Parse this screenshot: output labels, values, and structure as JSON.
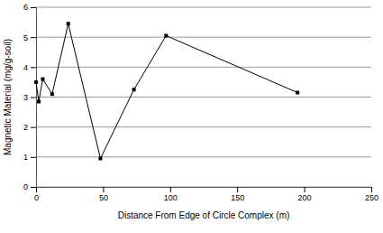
{
  "chart_data": {
    "type": "line",
    "x_label": "Distance From Edge of Circle Complex (m)",
    "y_label": "Magnetic Material (mg/g-soil)",
    "x": [
      0,
      2,
      5,
      12,
      24,
      48,
      73,
      97,
      195
    ],
    "values": [
      3.5,
      2.85,
      3.6,
      3.1,
      5.45,
      0.95,
      3.25,
      5.05,
      3.15
    ],
    "color": "#000000",
    "marker": "square",
    "xlim": [
      0,
      250
    ],
    "xticks": [
      0,
      50,
      100,
      150,
      200,
      250
    ],
    "ylim": [
      0,
      6
    ],
    "yticks": [
      0,
      1,
      2,
      3,
      4,
      5,
      6
    ],
    "grid": true
  }
}
